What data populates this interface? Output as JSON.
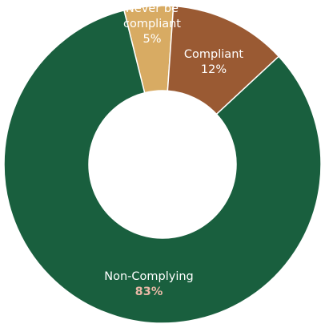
{
  "chart_data": {
    "type": "pie",
    "style": "donut",
    "legend": "none",
    "slices": [
      {
        "name": "Never be compliant",
        "label_lines": [
          "Never be",
          "compliant"
        ],
        "value": 5,
        "value_label": "5%",
        "color": "#d8ab63",
        "label_color": "#ffffff"
      },
      {
        "name": "Compliant",
        "label_lines": [
          "Compliant"
        ],
        "value": 12,
        "value_label": "12%",
        "color": "#9a5a33",
        "label_color": "#ffffff"
      },
      {
        "name": "Non-Complying",
        "label_lines": [
          "Non-Complying"
        ],
        "value": 83,
        "value_label": "83%",
        "color": "#195f3e",
        "label_color": "#ffffff",
        "value_label_color": "#e8b8a6"
      }
    ]
  }
}
